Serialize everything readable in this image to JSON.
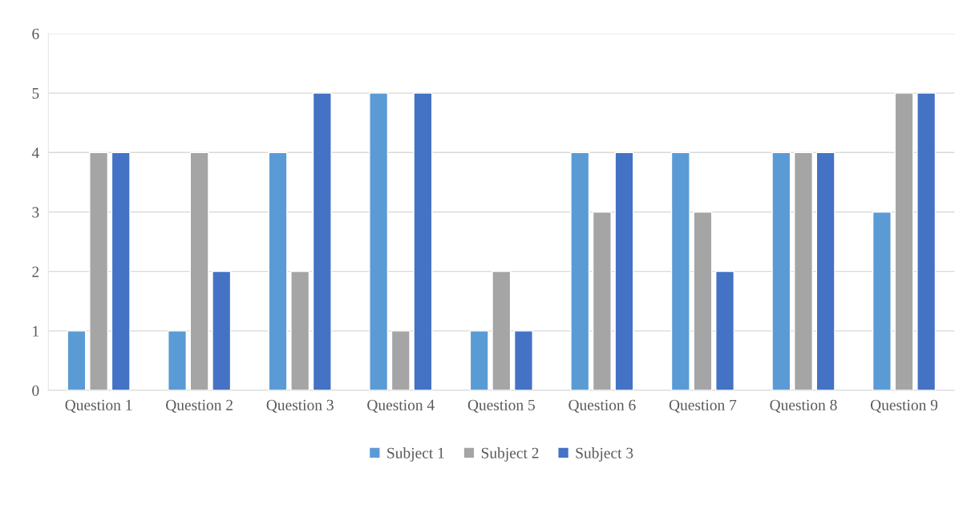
{
  "chart_data": {
    "type": "bar",
    "categories": [
      "Question 1",
      "Question 2",
      "Question 3",
      "Question 4",
      "Question 5",
      "Question 6",
      "Question 7",
      "Question 8",
      "Question 9"
    ],
    "series": [
      {
        "name": "Subject 1",
        "color": "#5b9bd5",
        "values": [
          1,
          1,
          4,
          5,
          1,
          4,
          4,
          4,
          3
        ]
      },
      {
        "name": "Subject 2",
        "color": "#a5a5a5",
        "values": [
          4,
          4,
          2,
          1,
          2,
          3,
          3,
          4,
          5
        ]
      },
      {
        "name": "Subject 3",
        "color": "#4472c4",
        "values": [
          4,
          2,
          5,
          5,
          1,
          4,
          2,
          4,
          5
        ]
      }
    ],
    "ylim": [
      0,
      6
    ],
    "yticks": [
      0,
      1,
      2,
      3,
      4,
      5,
      6
    ],
    "grid": "y",
    "legend": "bottom"
  }
}
